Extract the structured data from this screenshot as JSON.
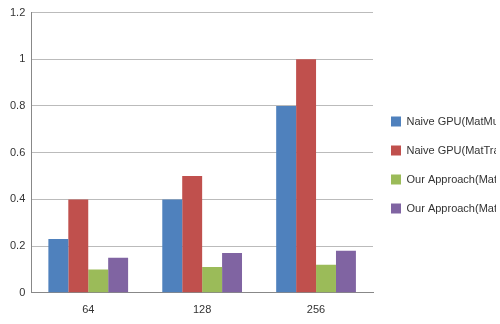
{
  "chart_data": {
    "type": "bar",
    "categories": [
      "64",
      "128",
      "256"
    ],
    "series": [
      {
        "name": "Naive GPU(MatMul)",
        "color": "#4f81bd",
        "values": [
          0.23,
          0.4,
          0.8
        ]
      },
      {
        "name": "Naive GPU(MatTrans)",
        "color": "#c0504d",
        "values": [
          0.4,
          0.5,
          1.0
        ]
      },
      {
        "name": "Our Approach(MatMul)",
        "color": "#9bbb59",
        "values": [
          0.1,
          0.11,
          0.12
        ]
      },
      {
        "name": "Our Approach(MatTrans)",
        "color": "#8064a2",
        "values": [
          0.15,
          0.17,
          0.18
        ]
      }
    ],
    "ylim": [
      0,
      1.2
    ],
    "yticks": [
      0,
      0.2,
      0.4,
      0.6,
      0.8,
      1,
      1.2
    ],
    "grid": true,
    "legend": "right"
  }
}
